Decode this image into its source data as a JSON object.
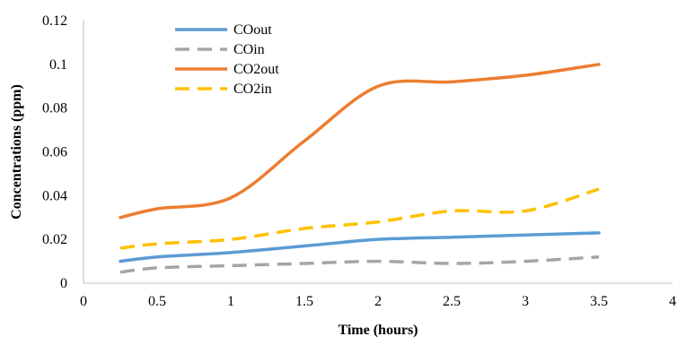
{
  "chart_data": {
    "type": "line",
    "title": "",
    "xlabel": "Time (hours)",
    "ylabel": "Concentrations (ppm)",
    "xlim": [
      0,
      4
    ],
    "ylim": [
      0,
      0.12
    ],
    "x_ticks": [
      "0",
      "0.5",
      "1",
      "1.5",
      "2",
      "2.5",
      "3",
      "3.5",
      "4"
    ],
    "y_ticks": [
      "0",
      "0.02",
      "0.04",
      "0.06",
      "0.08",
      "0.1",
      "0.12"
    ],
    "grid": false,
    "legend_position": "top-left",
    "series": [
      {
        "name": "COout",
        "color": "#5b9bd5",
        "dash": "solid",
        "x": [
          0.25,
          0.5,
          1.0,
          1.5,
          2.0,
          2.5,
          3.0,
          3.5
        ],
        "y": [
          0.01,
          0.012,
          0.014,
          0.017,
          0.02,
          0.021,
          0.022,
          0.023
        ]
      },
      {
        "name": "COin",
        "color": "#a5a5a5",
        "dash": "dashed",
        "x": [
          0.25,
          0.5,
          1.0,
          1.5,
          2.0,
          2.5,
          3.0,
          3.5
        ],
        "y": [
          0.005,
          0.007,
          0.008,
          0.009,
          0.01,
          0.009,
          0.01,
          0.012
        ]
      },
      {
        "name": "CO2out",
        "color": "#ed7d31",
        "dash": "solid",
        "x": [
          0.25,
          0.5,
          1.0,
          1.5,
          2.0,
          2.5,
          3.0,
          3.5
        ],
        "y": [
          0.03,
          0.034,
          0.039,
          0.065,
          0.09,
          0.092,
          0.095,
          0.1
        ]
      },
      {
        "name": "CO2in",
        "color": "#ffc000",
        "dash": "dashed",
        "x": [
          0.25,
          0.5,
          1.0,
          1.5,
          2.0,
          2.5,
          3.0,
          3.5
        ],
        "y": [
          0.016,
          0.018,
          0.02,
          0.025,
          0.028,
          0.033,
          0.033,
          0.043
        ]
      }
    ]
  }
}
